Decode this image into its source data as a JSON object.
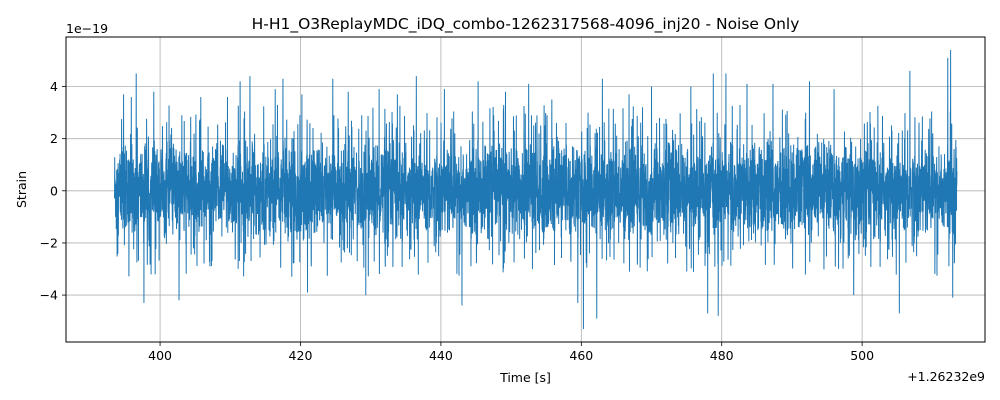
{
  "chart_data": {
    "type": "line",
    "title": "H-H1_O3ReplayMDC_iDQ_combo-1262317568-4096_inj20 - Noise Only",
    "xlabel": "Time [s]",
    "ylabel": "Strain",
    "x_offset_label": "+1.26232e9",
    "y_multiplier_label": "1e−19",
    "xlim": [
      386.6,
      517.5
    ],
    "ylim": [
      -5.8,
      5.9
    ],
    "x_ticks": [
      400,
      420,
      440,
      460,
      480,
      500
    ],
    "x_tick_labels": [
      "400",
      "420",
      "440",
      "460",
      "480",
      "500"
    ],
    "y_ticks": [
      -4,
      -2,
      0,
      2,
      4
    ],
    "y_tick_labels": [
      "−4",
      "−2",
      "0",
      "2",
      "4"
    ],
    "grid": true,
    "series": [
      {
        "color": "#1f77b4",
        "x_range": [
          393.5,
          513.5
        ],
        "typical_amplitude": 2.2,
        "peaks": [
          {
            "x": 394.8,
            "y": 3.7
          },
          {
            "x": 395.9,
            "y": 3.6
          },
          {
            "x": 396.6,
            "y": 4.5
          },
          {
            "x": 397.7,
            "y": -4.3
          },
          {
            "x": 399.1,
            "y": 3.8
          },
          {
            "x": 402.7,
            "y": -4.2
          },
          {
            "x": 405.8,
            "y": 3.6
          },
          {
            "x": 409.6,
            "y": 3.6
          },
          {
            "x": 411.4,
            "y": 4.2
          },
          {
            "x": 412.8,
            "y": 4.4
          },
          {
            "x": 416.4,
            "y": 3.9
          },
          {
            "x": 417.5,
            "y": 4.3
          },
          {
            "x": 420.2,
            "y": 3.7
          },
          {
            "x": 421.0,
            "y": -3.9
          },
          {
            "x": 424.6,
            "y": 4.3
          },
          {
            "x": 426.8,
            "y": 3.8
          },
          {
            "x": 429.3,
            "y": -4.0
          },
          {
            "x": 431.2,
            "y": 3.9
          },
          {
            "x": 433.8,
            "y": 3.7
          },
          {
            "x": 436.5,
            "y": 4.4
          },
          {
            "x": 440.5,
            "y": 3.9
          },
          {
            "x": 443.0,
            "y": -4.4
          },
          {
            "x": 445.3,
            "y": 4.2
          },
          {
            "x": 449.2,
            "y": 3.8
          },
          {
            "x": 452.5,
            "y": 4.1
          },
          {
            "x": 455.8,
            "y": 3.5
          },
          {
            "x": 459.5,
            "y": -4.3
          },
          {
            "x": 460.3,
            "y": -5.3
          },
          {
            "x": 462.2,
            "y": -4.9
          },
          {
            "x": 463.0,
            "y": 4.3
          },
          {
            "x": 466.8,
            "y": 3.7
          },
          {
            "x": 470.0,
            "y": 4.0
          },
          {
            "x": 475.6,
            "y": 4.0
          },
          {
            "x": 478.0,
            "y": -4.7
          },
          {
            "x": 478.8,
            "y": 4.5
          },
          {
            "x": 479.5,
            "y": -4.8
          },
          {
            "x": 480.6,
            "y": 4.5
          },
          {
            "x": 483.6,
            "y": 4.1
          },
          {
            "x": 487.3,
            "y": 4.1
          },
          {
            "x": 492.5,
            "y": 4.2
          },
          {
            "x": 496.0,
            "y": 3.9
          },
          {
            "x": 498.8,
            "y": -4.0
          },
          {
            "x": 505.3,
            "y": -4.7
          },
          {
            "x": 506.8,
            "y": 4.6
          },
          {
            "x": 512.2,
            "y": 5.1
          },
          {
            "x": 512.6,
            "y": 5.4
          },
          {
            "x": 512.9,
            "y": -4.1
          }
        ]
      }
    ]
  }
}
